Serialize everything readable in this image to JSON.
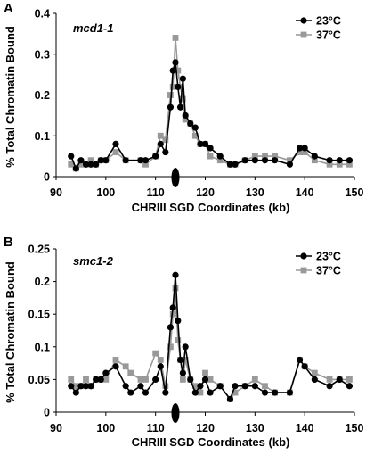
{
  "chart_data": [
    {
      "type": "line",
      "panel_label": "A",
      "title": "mcd1-1",
      "xlabel": "CHRIII SGD Coordinates (kb)",
      "ylabel": "% Total Chromatin Bound",
      "xlim": [
        90,
        150
      ],
      "ylim": [
        0,
        0.4
      ],
      "x_ticks": [
        "90",
        "100",
        "110",
        "120",
        "130",
        "140",
        "150"
      ],
      "y_ticks": [
        "0",
        "0.1",
        "0.2",
        "0.3",
        "0.4"
      ],
      "legend_position": "top-right",
      "marker_at_x": 114,
      "series": [
        {
          "name": "23°C",
          "color": "#000000",
          "marker": "circle",
          "x": [
            93,
            94,
            95,
            96,
            97,
            98,
            99,
            100,
            102,
            104,
            107,
            108,
            110,
            111,
            112,
            113,
            113.5,
            114,
            114.5,
            115,
            115.5,
            116,
            117,
            118,
            119,
            120,
            121,
            123,
            125,
            126,
            128,
            130,
            132,
            134,
            137,
            139,
            140,
            142,
            145,
            147,
            149
          ],
          "y": [
            0.05,
            0.02,
            0.04,
            0.03,
            0.03,
            0.03,
            0.04,
            0.04,
            0.08,
            0.04,
            0.04,
            0.04,
            0.05,
            0.08,
            0.06,
            0.17,
            0.26,
            0.28,
            0.22,
            0.17,
            0.24,
            0.15,
            0.13,
            0.12,
            0.08,
            0.08,
            0.07,
            0.05,
            0.03,
            0.03,
            0.04,
            0.04,
            0.04,
            0.04,
            0.03,
            0.07,
            0.07,
            0.05,
            0.04,
            0.04,
            0.04
          ]
        },
        {
          "name": "37°C",
          "color": "#999999",
          "marker": "square",
          "x": [
            93,
            94,
            95,
            96,
            97,
            98,
            99,
            100,
            102,
            104,
            107,
            108,
            110,
            111,
            112,
            113,
            113.5,
            114,
            114.5,
            115,
            115.5,
            116,
            117,
            118,
            119,
            120,
            121,
            123,
            125,
            126,
            128,
            130,
            132,
            134,
            137,
            139,
            140,
            142,
            145,
            147,
            149
          ],
          "y": [
            0.03,
            0.02,
            0.03,
            0.03,
            0.04,
            0.03,
            0.04,
            0.04,
            0.06,
            0.04,
            0.04,
            0.03,
            0.05,
            0.1,
            0.09,
            0.2,
            0.22,
            0.34,
            0.26,
            0.22,
            0.19,
            0.14,
            0.13,
            0.1,
            0.08,
            0.08,
            0.05,
            0.04,
            0.03,
            0.03,
            0.04,
            0.05,
            0.05,
            0.05,
            0.04,
            0.06,
            0.06,
            0.04,
            0.03,
            0.03,
            0.03
          ]
        }
      ]
    },
    {
      "type": "line",
      "panel_label": "B",
      "title": "smc1-2",
      "xlabel": "CHRIII SGD Coordinates (kb)",
      "ylabel": "% Total Chromatin Bound",
      "xlim": [
        90,
        150
      ],
      "ylim": [
        0,
        0.25
      ],
      "x_ticks": [
        "90",
        "100",
        "110",
        "120",
        "130",
        "140",
        "150"
      ],
      "y_ticks": [
        "0",
        "0.05",
        "0.1",
        "0.15",
        "0.2",
        "0.25"
      ],
      "legend_position": "top-right",
      "marker_at_x": 114,
      "series": [
        {
          "name": "23°C",
          "color": "#000000",
          "marker": "circle",
          "x": [
            93,
            94,
            95,
            96,
            97,
            98,
            99,
            100,
            102,
            104,
            105,
            107,
            108,
            110,
            111,
            112,
            113,
            113.5,
            114,
            114.5,
            115,
            115.5,
            116,
            117,
            118,
            119,
            120,
            121,
            123,
            125,
            126,
            128,
            130,
            132,
            134,
            137,
            139,
            140,
            142,
            145,
            147,
            149
          ],
          "y": [
            0.04,
            0.03,
            0.04,
            0.04,
            0.04,
            0.05,
            0.05,
            0.06,
            0.07,
            0.04,
            0.03,
            0.04,
            0.03,
            0.05,
            0.07,
            0.03,
            0.13,
            0.16,
            0.21,
            0.14,
            0.08,
            0.06,
            0.1,
            0.05,
            0.03,
            0.04,
            0.05,
            0.03,
            0.04,
            0.02,
            0.04,
            0.04,
            0.04,
            0.03,
            0.03,
            0.03,
            0.08,
            0.07,
            0.05,
            0.04,
            0.05,
            0.04
          ]
        },
        {
          "name": "37°C",
          "color": "#999999",
          "marker": "square",
          "x": [
            93,
            94,
            95,
            96,
            97,
            98,
            99,
            100,
            102,
            104,
            105,
            107,
            108,
            110,
            111,
            112,
            113,
            113.5,
            114,
            114.5,
            115,
            115.5,
            116,
            117,
            118,
            119,
            120,
            121,
            123,
            125,
            126,
            128,
            130,
            132,
            134,
            137,
            139,
            140,
            142,
            145,
            147,
            149
          ],
          "y": [
            0.05,
            0.04,
            0.04,
            0.05,
            0.04,
            0.05,
            0.05,
            0.05,
            0.08,
            0.07,
            0.06,
            0.05,
            0.05,
            0.09,
            0.08,
            0.04,
            0.1,
            0.15,
            0.19,
            0.11,
            0.08,
            0.05,
            0.08,
            0.05,
            0.04,
            0.03,
            0.06,
            0.05,
            0.04,
            0.02,
            0.03,
            0.04,
            0.05,
            0.04,
            0.03,
            0.03,
            0.08,
            0.07,
            0.06,
            0.05,
            0.05,
            0.05
          ]
        }
      ]
    }
  ]
}
